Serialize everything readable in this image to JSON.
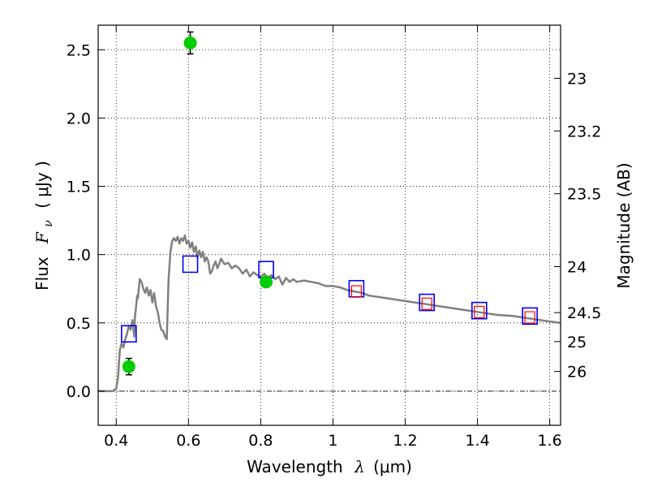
{
  "chart_data": {
    "type": "scatter",
    "xlabel_prefix": "Wavelength",
    "xlabel_symbol": "λ",
    "xlabel_units": "(μm)",
    "ylabel_left_prefix": "Flux",
    "ylabel_left_symbol": "F",
    "ylabel_left_subscript": "ν",
    "ylabel_left_units": "( μJy )",
    "ylabel_right": "Magnitude (AB)",
    "xlim": [
      0.35,
      1.63
    ],
    "ylim": [
      -0.25,
      2.68
    ],
    "x_ticks": [
      0.4,
      0.6,
      0.8,
      1.0,
      1.2,
      1.4,
      1.6
    ],
    "x_tick_labels": [
      "0.4",
      "0.6",
      "0.8",
      "1",
      "1.2",
      "1.4",
      "1.6"
    ],
    "y_ticks": [
      0.0,
      0.5,
      1.0,
      1.5,
      2.0,
      2.5
    ],
    "y_tick_labels": [
      "0.0",
      "0.5",
      "1.0",
      "1.5",
      "2.0",
      "2.5"
    ],
    "mag_ticks": [
      23,
      23.2,
      23.5,
      24,
      24.5,
      25,
      26
    ],
    "mag_tick_labels": [
      "23",
      "23.2",
      "23.5",
      "24",
      "24.5",
      "25",
      "26"
    ],
    "zero_line": 0,
    "grid": true,
    "colors": {
      "model": "#808080",
      "observed": "#00cc00",
      "model_photometry": "#0000ff",
      "secondary_photometry": "#ff0000",
      "errorbar": "#000000"
    },
    "series": [
      {
        "name": "model-sed",
        "style": "line",
        "x": [
          0.35,
          0.39,
          0.4,
          0.405,
          0.41,
          0.415,
          0.42,
          0.425,
          0.43,
          0.435,
          0.44,
          0.445,
          0.45,
          0.452,
          0.455,
          0.458,
          0.46,
          0.465,
          0.47,
          0.475,
          0.48,
          0.485,
          0.49,
          0.495,
          0.5,
          0.505,
          0.51,
          0.515,
          0.52,
          0.525,
          0.53,
          0.535,
          0.54,
          0.545,
          0.55,
          0.555,
          0.56,
          0.565,
          0.57,
          0.575,
          0.58,
          0.585,
          0.59,
          0.595,
          0.6,
          0.605,
          0.61,
          0.615,
          0.62,
          0.625,
          0.63,
          0.635,
          0.64,
          0.645,
          0.65,
          0.655,
          0.66,
          0.665,
          0.67,
          0.675,
          0.68,
          0.685,
          0.69,
          0.7,
          0.71,
          0.72,
          0.73,
          0.74,
          0.75,
          0.76,
          0.77,
          0.78,
          0.79,
          0.8,
          0.81,
          0.82,
          0.83,
          0.84,
          0.85,
          0.86,
          0.87,
          0.88,
          0.89,
          0.9,
          0.92,
          0.94,
          0.96,
          0.98,
          1.0,
          1.02,
          1.04,
          1.06,
          1.08,
          1.1,
          1.15,
          1.2,
          1.25,
          1.3,
          1.35,
          1.4,
          1.45,
          1.5,
          1.55,
          1.6,
          1.63
        ],
        "y": [
          0.0,
          0.0,
          0.02,
          0.1,
          0.3,
          0.35,
          0.32,
          0.38,
          0.42,
          0.48,
          0.45,
          0.52,
          0.4,
          0.55,
          0.62,
          0.7,
          0.68,
          0.82,
          0.8,
          0.75,
          0.72,
          0.76,
          0.7,
          0.74,
          0.65,
          0.72,
          0.62,
          0.58,
          0.5,
          0.45,
          0.44,
          0.4,
          0.38,
          0.82,
          1.02,
          1.1,
          1.12,
          1.1,
          1.13,
          1.08,
          1.12,
          1.1,
          1.14,
          1.08,
          1.1,
          1.05,
          1.09,
          1.02,
          1.06,
          0.98,
          1.03,
          0.98,
          1.02,
          0.95,
          0.98,
          0.95,
          0.86,
          0.88,
          0.92,
          0.95,
          0.9,
          0.93,
          0.97,
          0.93,
          0.94,
          0.9,
          0.92,
          0.9,
          0.86,
          0.89,
          0.84,
          0.87,
          0.85,
          0.84,
          0.86,
          0.83,
          0.85,
          0.82,
          0.84,
          0.78,
          0.83,
          0.8,
          0.82,
          0.8,
          0.81,
          0.8,
          0.79,
          0.77,
          0.77,
          0.76,
          0.74,
          0.73,
          0.72,
          0.7,
          0.68,
          0.66,
          0.64,
          0.62,
          0.6,
          0.58,
          0.56,
          0.55,
          0.53,
          0.51,
          0.5
        ]
      },
      {
        "name": "observed",
        "style": "marker-circle",
        "x": [
          0.435,
          0.605,
          0.815
        ],
        "y": [
          0.18,
          2.55,
          0.8
        ],
        "yerr": [
          0.06,
          0.08,
          0.02
        ]
      },
      {
        "name": "model-photometry",
        "style": "marker-square",
        "x": [
          0.435,
          0.605,
          0.815,
          1.065,
          1.26,
          1.405,
          1.545
        ],
        "y": [
          0.42,
          0.93,
          0.89,
          0.75,
          0.65,
          0.59,
          0.55
        ]
      },
      {
        "name": "secondary-photometry",
        "style": "marker-square-small",
        "x": [
          1.065,
          1.26,
          1.405,
          1.545
        ],
        "y": [
          0.73,
          0.64,
          0.58,
          0.54
        ]
      }
    ]
  }
}
